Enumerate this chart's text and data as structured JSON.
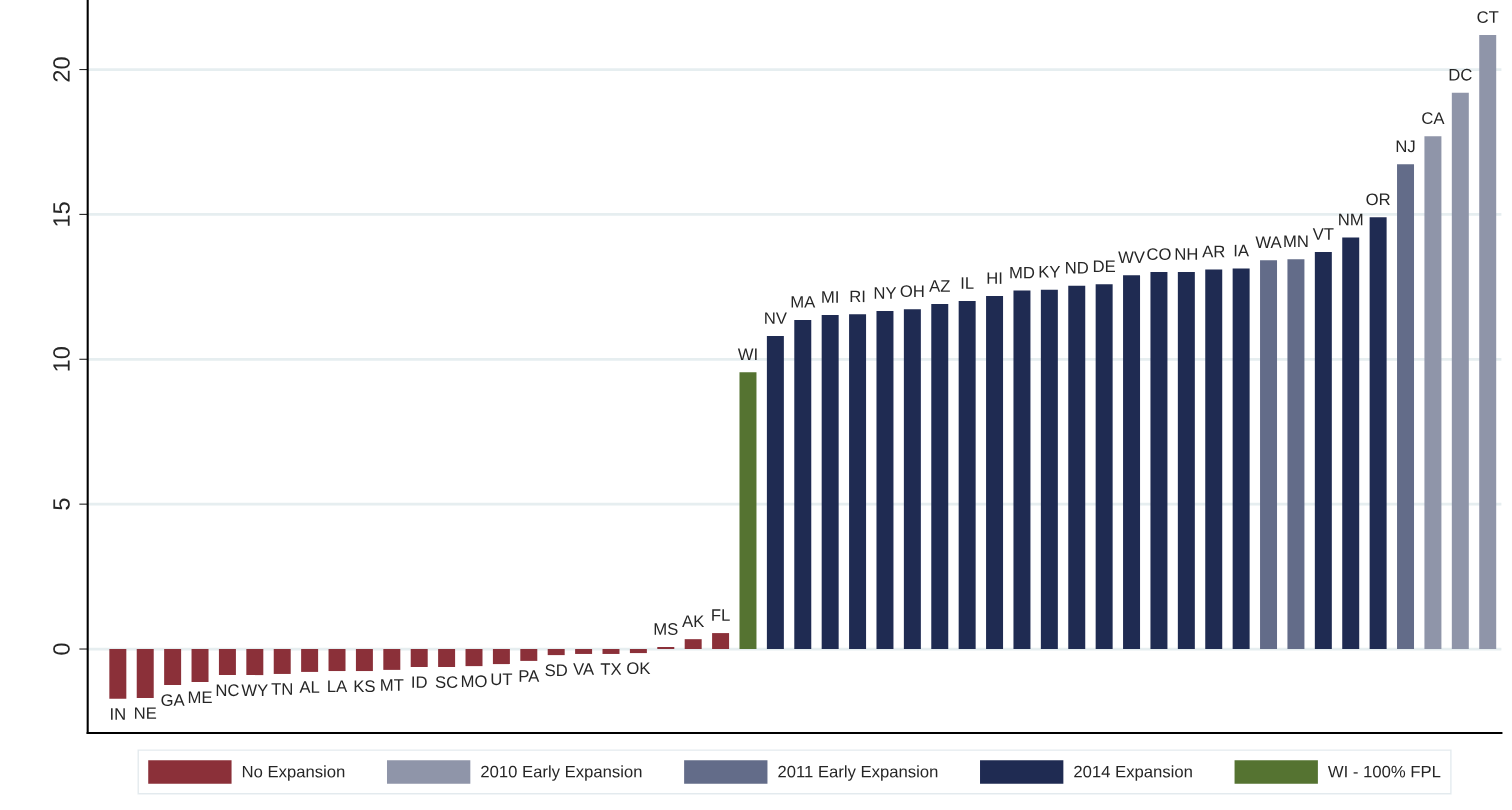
{
  "chart_data": {
    "type": "bar",
    "categories": [
      "IN",
      "NE",
      "GA",
      "ME",
      "NC",
      "WY",
      "TN",
      "AL",
      "LA",
      "KS",
      "MT",
      "ID",
      "SC",
      "MO",
      "UT",
      "PA",
      "SD",
      "VA",
      "TX",
      "OK",
      "MS",
      "AK",
      "FL",
      "WI",
      "NV",
      "MA",
      "MI",
      "RI",
      "NY",
      "OH",
      "AZ",
      "IL",
      "HI",
      "MD",
      "KY",
      "ND",
      "DE",
      "WV",
      "CO",
      "NH",
      "AR",
      "IA",
      "WA",
      "MN",
      "VT",
      "NM",
      "OR",
      "NJ",
      "CA",
      "DC",
      "CT"
    ],
    "series": [
      {
        "name": "No Expansion",
        "color": "#8b3039",
        "values": [
          -1.72,
          -1.69,
          -1.24,
          -1.14,
          -0.9,
          -0.9,
          -0.86,
          -0.79,
          -0.76,
          -0.76,
          -0.72,
          -0.62,
          -0.62,
          -0.59,
          -0.52,
          -0.41,
          -0.21,
          -0.17,
          -0.17,
          -0.14,
          0.07,
          0.34,
          0.55,
          null,
          null,
          null,
          null,
          null,
          null,
          null,
          null,
          null,
          null,
          null,
          null,
          null,
          null,
          null,
          null,
          null,
          null,
          null,
          null,
          null,
          null,
          null,
          null,
          null,
          null,
          null,
          null
        ]
      },
      {
        "name": "2010 Early Expansion",
        "color": "#8f95a9",
        "values": [
          null,
          null,
          null,
          null,
          null,
          null,
          null,
          null,
          null,
          null,
          null,
          null,
          null,
          null,
          null,
          null,
          null,
          null,
          null,
          null,
          null,
          null,
          null,
          null,
          null,
          null,
          null,
          null,
          null,
          null,
          null,
          null,
          null,
          null,
          null,
          null,
          null,
          null,
          null,
          null,
          null,
          null,
          null,
          null,
          null,
          null,
          null,
          null,
          17.7,
          19.2,
          21.19
        ]
      },
      {
        "name": "2011 Early Expansion",
        "color": "#636c89",
        "values": [
          null,
          null,
          null,
          null,
          null,
          null,
          null,
          null,
          null,
          null,
          null,
          null,
          null,
          null,
          null,
          null,
          null,
          null,
          null,
          null,
          null,
          null,
          null,
          null,
          null,
          null,
          null,
          null,
          null,
          null,
          null,
          null,
          null,
          null,
          null,
          null,
          null,
          null,
          null,
          null,
          null,
          null,
          13.42,
          13.45,
          null,
          null,
          null,
          16.73,
          null,
          null,
          null
        ]
      },
      {
        "name": "2014 Expansion",
        "color": "#1f2b52",
        "values": [
          null,
          null,
          null,
          null,
          null,
          null,
          null,
          null,
          null,
          null,
          null,
          null,
          null,
          null,
          null,
          null,
          null,
          null,
          null,
          null,
          null,
          null,
          null,
          null,
          10.8,
          11.36,
          11.53,
          11.55,
          11.67,
          11.73,
          11.91,
          12.01,
          12.18,
          12.37,
          12.4,
          12.54,
          12.59,
          12.9,
          13.01,
          13.01,
          13.1,
          13.13,
          null,
          null,
          13.7,
          14.2,
          14.9,
          null,
          null,
          null,
          null
        ]
      },
      {
        "name": "WI - 100% FPL",
        "color": "#557331",
        "values": [
          null,
          null,
          null,
          null,
          null,
          null,
          null,
          null,
          null,
          null,
          null,
          null,
          null,
          null,
          null,
          null,
          null,
          null,
          null,
          null,
          null,
          null,
          null,
          9.55,
          null,
          null,
          null,
          null,
          null,
          null,
          null,
          null,
          null,
          null,
          null,
          null,
          null,
          null,
          null,
          null,
          null,
          null,
          null,
          null,
          null,
          null,
          null,
          null,
          null,
          null,
          null
        ]
      }
    ],
    "ylim": [
      -2.9,
      22.4
    ],
    "yticks": [
      0,
      5,
      10,
      15,
      20
    ],
    "grid": "y",
    "legend": "bottom",
    "tick_labels": "y"
  }
}
